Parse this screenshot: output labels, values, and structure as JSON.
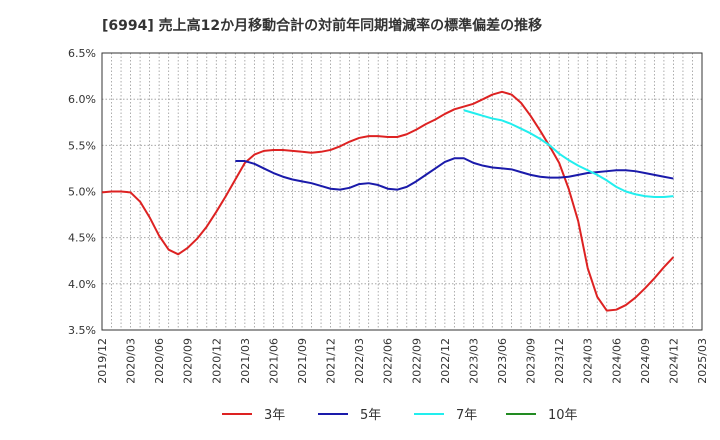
{
  "chart_data": {
    "type": "line",
    "title": "[6994]  売上高12か月移動合計の対前年同期増減率の標準偏差の推移",
    "xlabel": "",
    "ylabel": "",
    "ylim": [
      3.5,
      6.5
    ],
    "y_ticks": [
      "6.5%",
      "6.0%",
      "5.5%",
      "5.0%",
      "4.5%",
      "4.0%",
      "3.5%"
    ],
    "y_tick_values": [
      6.5,
      6.0,
      5.5,
      5.0,
      4.5,
      4.0,
      3.5
    ],
    "x_ticks": [
      "2019/12",
      "2020/03",
      "2020/06",
      "2020/09",
      "2020/12",
      "2021/03",
      "2021/06",
      "2021/09",
      "2021/12",
      "2022/03",
      "2022/06",
      "2022/09",
      "2022/12",
      "2023/03",
      "2023/06",
      "2023/09",
      "2023/12",
      "2024/03",
      "2024/06",
      "2024/09",
      "2024/12",
      "2025/03"
    ],
    "grid": true,
    "legend_position": "bottom",
    "series": [
      {
        "name": "3年",
        "color": "#dd2222",
        "points": [
          [
            "2019/12",
            4.99
          ],
          [
            "2020/01",
            5.0
          ],
          [
            "2020/02",
            5.0
          ],
          [
            "2020/03",
            4.99
          ],
          [
            "2020/04",
            4.89
          ],
          [
            "2020/05",
            4.72
          ],
          [
            "2020/06",
            4.52
          ],
          [
            "2020/07",
            4.37
          ],
          [
            "2020/08",
            4.32
          ],
          [
            "2020/09",
            4.39
          ],
          [
            "2020/10",
            4.49
          ],
          [
            "2020/11",
            4.62
          ],
          [
            "2020/12",
            4.78
          ],
          [
            "2021/01",
            4.95
          ],
          [
            "2021/02",
            5.13
          ],
          [
            "2021/03",
            5.31
          ],
          [
            "2021/04",
            5.4
          ],
          [
            "2021/05",
            5.44
          ],
          [
            "2021/06",
            5.45
          ],
          [
            "2021/07",
            5.45
          ],
          [
            "2021/08",
            5.44
          ],
          [
            "2021/09",
            5.43
          ],
          [
            "2021/10",
            5.42
          ],
          [
            "2021/11",
            5.43
          ],
          [
            "2021/12",
            5.45
          ],
          [
            "2022/01",
            5.49
          ],
          [
            "2022/02",
            5.54
          ],
          [
            "2022/03",
            5.58
          ],
          [
            "2022/04",
            5.6
          ],
          [
            "2022/05",
            5.6
          ],
          [
            "2022/06",
            5.59
          ],
          [
            "2022/07",
            5.59
          ],
          [
            "2022/08",
            5.62
          ],
          [
            "2022/09",
            5.67
          ],
          [
            "2022/10",
            5.73
          ],
          [
            "2022/11",
            5.78
          ],
          [
            "2022/12",
            5.84
          ],
          [
            "2023/01",
            5.89
          ],
          [
            "2023/02",
            5.92
          ],
          [
            "2023/03",
            5.95
          ],
          [
            "2023/04",
            6.0
          ],
          [
            "2023/05",
            6.05
          ],
          [
            "2023/06",
            6.08
          ],
          [
            "2023/07",
            6.05
          ],
          [
            "2023/08",
            5.96
          ],
          [
            "2023/09",
            5.82
          ],
          [
            "2023/10",
            5.66
          ],
          [
            "2023/11",
            5.49
          ],
          [
            "2023/12",
            5.31
          ],
          [
            "2024/01",
            5.03
          ],
          [
            "2024/02",
            4.68
          ],
          [
            "2024/03",
            4.17
          ],
          [
            "2024/04",
            3.86
          ],
          [
            "2024/05",
            3.71
          ],
          [
            "2024/06",
            3.72
          ],
          [
            "2024/07",
            3.77
          ],
          [
            "2024/08",
            3.85
          ],
          [
            "2024/09",
            3.95
          ],
          [
            "2024/10",
            4.06
          ],
          [
            "2024/11",
            4.18
          ],
          [
            "2024/12",
            4.29
          ]
        ]
      },
      {
        "name": "5年",
        "color": "#1a1aaa",
        "points": [
          [
            "2021/02",
            5.33
          ],
          [
            "2021/03",
            5.33
          ],
          [
            "2021/04",
            5.3
          ],
          [
            "2021/05",
            5.25
          ],
          [
            "2021/06",
            5.2
          ],
          [
            "2021/07",
            5.16
          ],
          [
            "2021/08",
            5.13
          ],
          [
            "2021/09",
            5.11
          ],
          [
            "2021/10",
            5.09
          ],
          [
            "2021/11",
            5.06
          ],
          [
            "2021/12",
            5.03
          ],
          [
            "2022/01",
            5.02
          ],
          [
            "2022/02",
            5.04
          ],
          [
            "2022/03",
            5.08
          ],
          [
            "2022/04",
            5.09
          ],
          [
            "2022/05",
            5.07
          ],
          [
            "2022/06",
            5.03
          ],
          [
            "2022/07",
            5.02
          ],
          [
            "2022/08",
            5.05
          ],
          [
            "2022/09",
            5.11
          ],
          [
            "2022/10",
            5.18
          ],
          [
            "2022/11",
            5.25
          ],
          [
            "2022/12",
            5.32
          ],
          [
            "2023/01",
            5.36
          ],
          [
            "2023/02",
            5.36
          ],
          [
            "2023/03",
            5.31
          ],
          [
            "2023/04",
            5.28
          ],
          [
            "2023/05",
            5.26
          ],
          [
            "2023/06",
            5.25
          ],
          [
            "2023/07",
            5.24
          ],
          [
            "2023/08",
            5.21
          ],
          [
            "2023/09",
            5.18
          ],
          [
            "2023/10",
            5.16
          ],
          [
            "2023/11",
            5.15
          ],
          [
            "2023/12",
            5.15
          ],
          [
            "2024/01",
            5.16
          ],
          [
            "2024/02",
            5.18
          ],
          [
            "2024/03",
            5.2
          ],
          [
            "2024/04",
            5.21
          ],
          [
            "2024/05",
            5.22
          ],
          [
            "2024/06",
            5.23
          ],
          [
            "2024/07",
            5.23
          ],
          [
            "2024/08",
            5.22
          ],
          [
            "2024/09",
            5.2
          ],
          [
            "2024/10",
            5.18
          ],
          [
            "2024/11",
            5.16
          ],
          [
            "2024/12",
            5.14
          ]
        ]
      },
      {
        "name": "7年",
        "color": "#22eeee",
        "points": [
          [
            "2023/02",
            5.88
          ],
          [
            "2023/03",
            5.85
          ],
          [
            "2023/04",
            5.82
          ],
          [
            "2023/05",
            5.79
          ],
          [
            "2023/06",
            5.77
          ],
          [
            "2023/07",
            5.73
          ],
          [
            "2023/08",
            5.68
          ],
          [
            "2023/09",
            5.63
          ],
          [
            "2023/10",
            5.57
          ],
          [
            "2023/11",
            5.5
          ],
          [
            "2023/12",
            5.41
          ],
          [
            "2024/01",
            5.34
          ],
          [
            "2024/02",
            5.28
          ],
          [
            "2024/03",
            5.23
          ],
          [
            "2024/04",
            5.18
          ],
          [
            "2024/05",
            5.12
          ],
          [
            "2024/06",
            5.05
          ],
          [
            "2024/07",
            5.0
          ],
          [
            "2024/08",
            4.97
          ],
          [
            "2024/09",
            4.95
          ],
          [
            "2024/10",
            4.94
          ],
          [
            "2024/11",
            4.94
          ],
          [
            "2024/12",
            4.95
          ]
        ]
      },
      {
        "name": "10年",
        "color": "#228b22",
        "points": []
      }
    ]
  }
}
